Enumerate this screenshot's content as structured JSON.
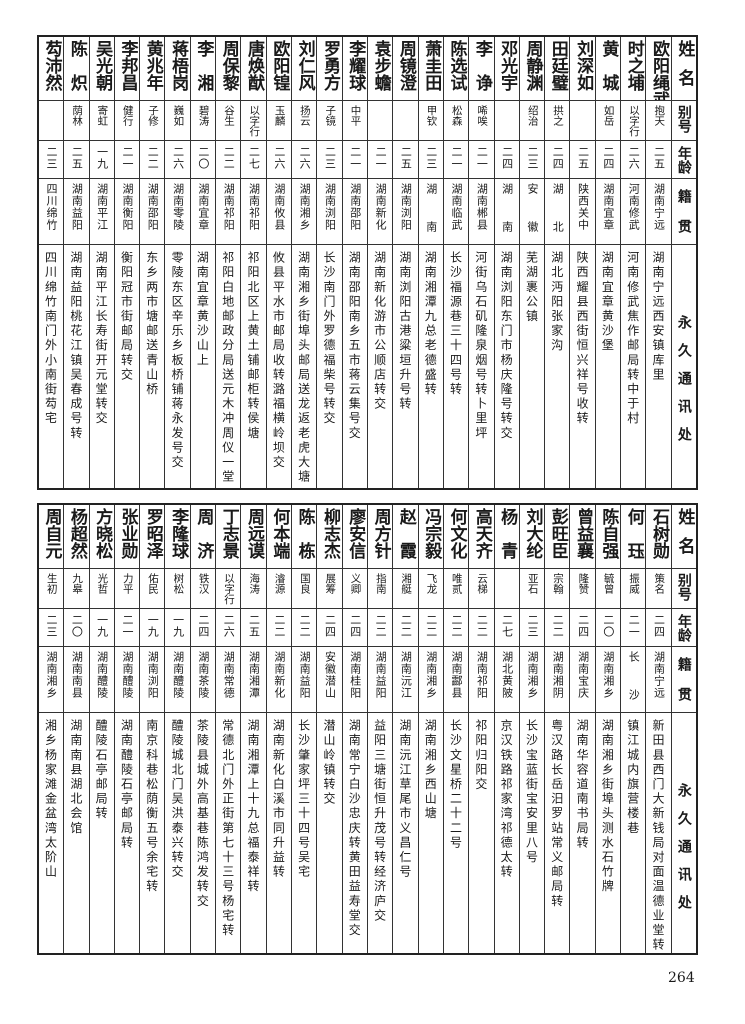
{
  "headers": {
    "name": "姓名",
    "alias": "别号",
    "age": "年龄",
    "origin": "籍贯",
    "address": "永久通讯处"
  },
  "top_rows": [
    {
      "name": "欧阳绳武",
      "alias": "抱天",
      "age": "二五",
      "origin": "湖南宁远",
      "address": "湖南宁远西安镇库里"
    },
    {
      "name": "时之埔",
      "alias": "以字行",
      "age": "二六",
      "origin": "河南修武",
      "address": "河南修武焦作邮局转中于村"
    },
    {
      "name": "黄城",
      "alias": "如岳",
      "age": "二四",
      "origin": "湖南宜章",
      "address": "湖南宜章黄沙堡"
    },
    {
      "name": "刘深如",
      "alias": "",
      "age": "二五",
      "origin": "陕西关中",
      "address": "陕西耀县西街恒兴祥号收转"
    },
    {
      "name": "田廷璧",
      "alias": "拱之",
      "age": "二四",
      "origin": "湖北",
      "address": "湖北沔阳张家沟"
    },
    {
      "name": "周静渊",
      "alias": "绍治",
      "age": "二三",
      "origin": "安徽",
      "address": "芜湖裹公镇"
    },
    {
      "name": "邓光宇",
      "alias": "",
      "age": "二四",
      "origin": "湖南",
      "address": "湖南浏阳东门市杨庆隆号转交"
    },
    {
      "name": "李诤",
      "alias": "唏唉",
      "age": "二一",
      "origin": "湖南郴县",
      "address": "河街乌石矶隆泉烟号转卜里坪"
    },
    {
      "name": "陈选试",
      "alias": "松森",
      "age": "二一",
      "origin": "湖南临武",
      "address": "长沙福源巷三十四号转"
    },
    {
      "name": "萧圭田",
      "alias": "甲钦",
      "age": "二三",
      "origin": "湖南",
      "address": "湖南湘潭九总老德盛转"
    },
    {
      "name": "周镜澄",
      "alias": "",
      "age": "二五",
      "origin": "湖南浏阳",
      "address": "湖南浏阳古港粱垣升号转"
    },
    {
      "name": "袁步蟾",
      "alias": "",
      "age": "二一",
      "origin": "湖南新化",
      "address": "湖南新化游市公顺店转交"
    },
    {
      "name": "李耀球",
      "alias": "中平",
      "age": "二一",
      "origin": "湖南邵阳",
      "address": "湖南邵阳南乡五市蒋云集号交"
    },
    {
      "name": "罗勇方",
      "alias": "子镜",
      "age": "二三",
      "origin": "湖南浏阳",
      "address": "长沙南门外罗德福柴号转交"
    },
    {
      "name": "刘仁风",
      "alias": "扬云",
      "age": "二六",
      "origin": "湖南湘乡",
      "address": "湖南湘乡街埠头邮局送龙返老虎大塘"
    },
    {
      "name": "欧阳锽",
      "alias": "玉麟",
      "age": "二六",
      "origin": "湖南攸县",
      "address": "攸县平水市邮局收转潞福横岭坝交"
    },
    {
      "name": "唐焕猷",
      "alias": "以字行",
      "age": "二七",
      "origin": "湖南祁阳",
      "address": "祁阳北区上黄土铺邮柜转侯塘"
    },
    {
      "name": "周保黎",
      "alias": "谷生",
      "age": "二二",
      "origin": "湖南祁阳",
      "address": "祁阳白地邮政分局送元木冲周仪一堂"
    },
    {
      "name": "李湘",
      "alias": "碧涛",
      "age": "二〇",
      "origin": "湖南宜章",
      "address": "湖南宜章黄沙山上"
    },
    {
      "name": "蒋梧岗",
      "alias": "巍如",
      "age": "二六",
      "origin": "湖南零陵",
      "address": "零陵东区辛乐乡板桥铺蒋永发号交"
    },
    {
      "name": "黄兆年",
      "alias": "子修",
      "age": "二二",
      "origin": "湖南邵阳",
      "address": "东乡两市塘邮送青山桥"
    },
    {
      "name": "李邦昌",
      "alias": "健行",
      "age": "二一",
      "origin": "湖南衡阳",
      "address": "衡阳冠市街邮局转交"
    },
    {
      "name": "吴光朝",
      "alias": "寄虹",
      "age": "一九",
      "origin": "湖南平江",
      "address": "湖南平江长寿街开元堂转交"
    },
    {
      "name": "陈炽",
      "alias": "荫林",
      "age": "二五",
      "origin": "湖南益阳",
      "address": "湖南益阳桃花江镇吴春成号转"
    },
    {
      "name": "芶沛然",
      "alias": "",
      "age": "二三",
      "origin": "四川绵竹",
      "address": "四川绵竹南门外小南街芶宅"
    }
  ],
  "bottom_rows": [
    {
      "name": "石树勋",
      "alias": "策名",
      "age": "二四",
      "origin": "湖南宁远",
      "address": "新田县西门大新钱局对面温德业堂转"
    },
    {
      "name": "何珏",
      "alias": "振威",
      "age": "二一",
      "origin": "长沙",
      "address": "镇江城内旗营楼巷"
    },
    {
      "name": "陈自强",
      "alias": "毓曾",
      "age": "二〇",
      "origin": "湖南湘乡",
      "address": "湖南湘乡街埠头测水石竹牌"
    },
    {
      "name": "曾益襄",
      "alias": "隆赞",
      "age": "二四",
      "origin": "湖南宝庆",
      "address": "湖南华容道南书局转"
    },
    {
      "name": "彭旺臣",
      "alias": "宗翰",
      "age": "二二",
      "origin": "湖南湘阴",
      "address": "粤汉路长岳汨罗站常义邮局转"
    },
    {
      "name": "刘大纶",
      "alias": "亚石",
      "age": "二三",
      "origin": "湖南湘乡",
      "address": "长沙宝蓝街宝安里八号"
    },
    {
      "name": "杨青",
      "alias": "",
      "age": "二七",
      "origin": "湖北黄陂",
      "address": "京汉铁路祁家湾祁德太转"
    },
    {
      "name": "高天齐",
      "alias": "云梯",
      "age": "二二",
      "origin": "湖南祁阳",
      "address": "祁阳归阳交"
    },
    {
      "name": "何文化",
      "alias": "唯贰",
      "age": "二二",
      "origin": "湖南酃县",
      "address": "长沙文星桥二十二号"
    },
    {
      "name": "冯宗毅",
      "alias": "飞龙",
      "age": "二二",
      "origin": "湖南湘乡",
      "address": "湖南湘乡西山塘"
    },
    {
      "name": "赵霞",
      "alias": "湘艇",
      "age": "二二",
      "origin": "湖南沅江",
      "address": "湖南沅江草尾市义昌仁号"
    },
    {
      "name": "周方针",
      "alias": "指南",
      "age": "二二",
      "origin": "湖南益阳",
      "address": "益阳三塘街恒升茂号转经济庐交"
    },
    {
      "name": "廖安信",
      "alias": "义卿",
      "age": "二四",
      "origin": "湖南桂阳",
      "address": "湖南常宁白沙忠庆转黄田益寿堂交"
    },
    {
      "name": "柳志杰",
      "alias": "展筹",
      "age": "二四",
      "origin": "安徽潜山",
      "address": "潜山岭镇转交"
    },
    {
      "name": "陈栋",
      "alias": "国良",
      "age": "二二",
      "origin": "湖南益阳",
      "address": "长沙肇家坪三十四号吴宅"
    },
    {
      "name": "何本端",
      "alias": "濬源",
      "age": "二二",
      "origin": "湖南新化",
      "address": "湖南新化白溪市同升益转"
    },
    {
      "name": "周远谟",
      "alias": "海涛",
      "age": "二五",
      "origin": "湖南湘潭",
      "address": "湖南湘潭上十九总福泰祥转"
    },
    {
      "name": "丁志景",
      "alias": "以字行",
      "age": "二六",
      "origin": "湖南常德",
      "address": "常德北门外正街第七十三号杨宅转"
    },
    {
      "name": "周济",
      "alias": "铁汉",
      "age": "二四",
      "origin": "湖南茶陵",
      "address": "茶陵县城外高基巷陈鸿发转交"
    },
    {
      "name": "李隆球",
      "alias": "树松",
      "age": "一九",
      "origin": "湖南醴陵",
      "address": "醴陵城北门吴洪泰兴转交"
    },
    {
      "name": "罗昭泽",
      "alias": "佑民",
      "age": "一九",
      "origin": "湖南浏阳",
      "address": "南京科巷松荫衡五号余宅转"
    },
    {
      "name": "张业勋",
      "alias": "力平",
      "age": "二一",
      "origin": "湖南醴陵",
      "address": "湖南醴陵石亭邮局转"
    },
    {
      "name": "方晓松",
      "alias": "光哲",
      "age": "一九",
      "origin": "湖南醴陵",
      "address": "醴陵石亭邮局转"
    },
    {
      "name": "杨超然",
      "alias": "九皋",
      "age": "二〇",
      "origin": "湖南南县",
      "address": "湖南南县湖北会馆"
    },
    {
      "name": "周自元",
      "alias": "生初",
      "age": "二三",
      "origin": "湖南湘乡",
      "address": "湘乡杨家滩金盆湾太阶山"
    }
  ],
  "page_number": "264"
}
